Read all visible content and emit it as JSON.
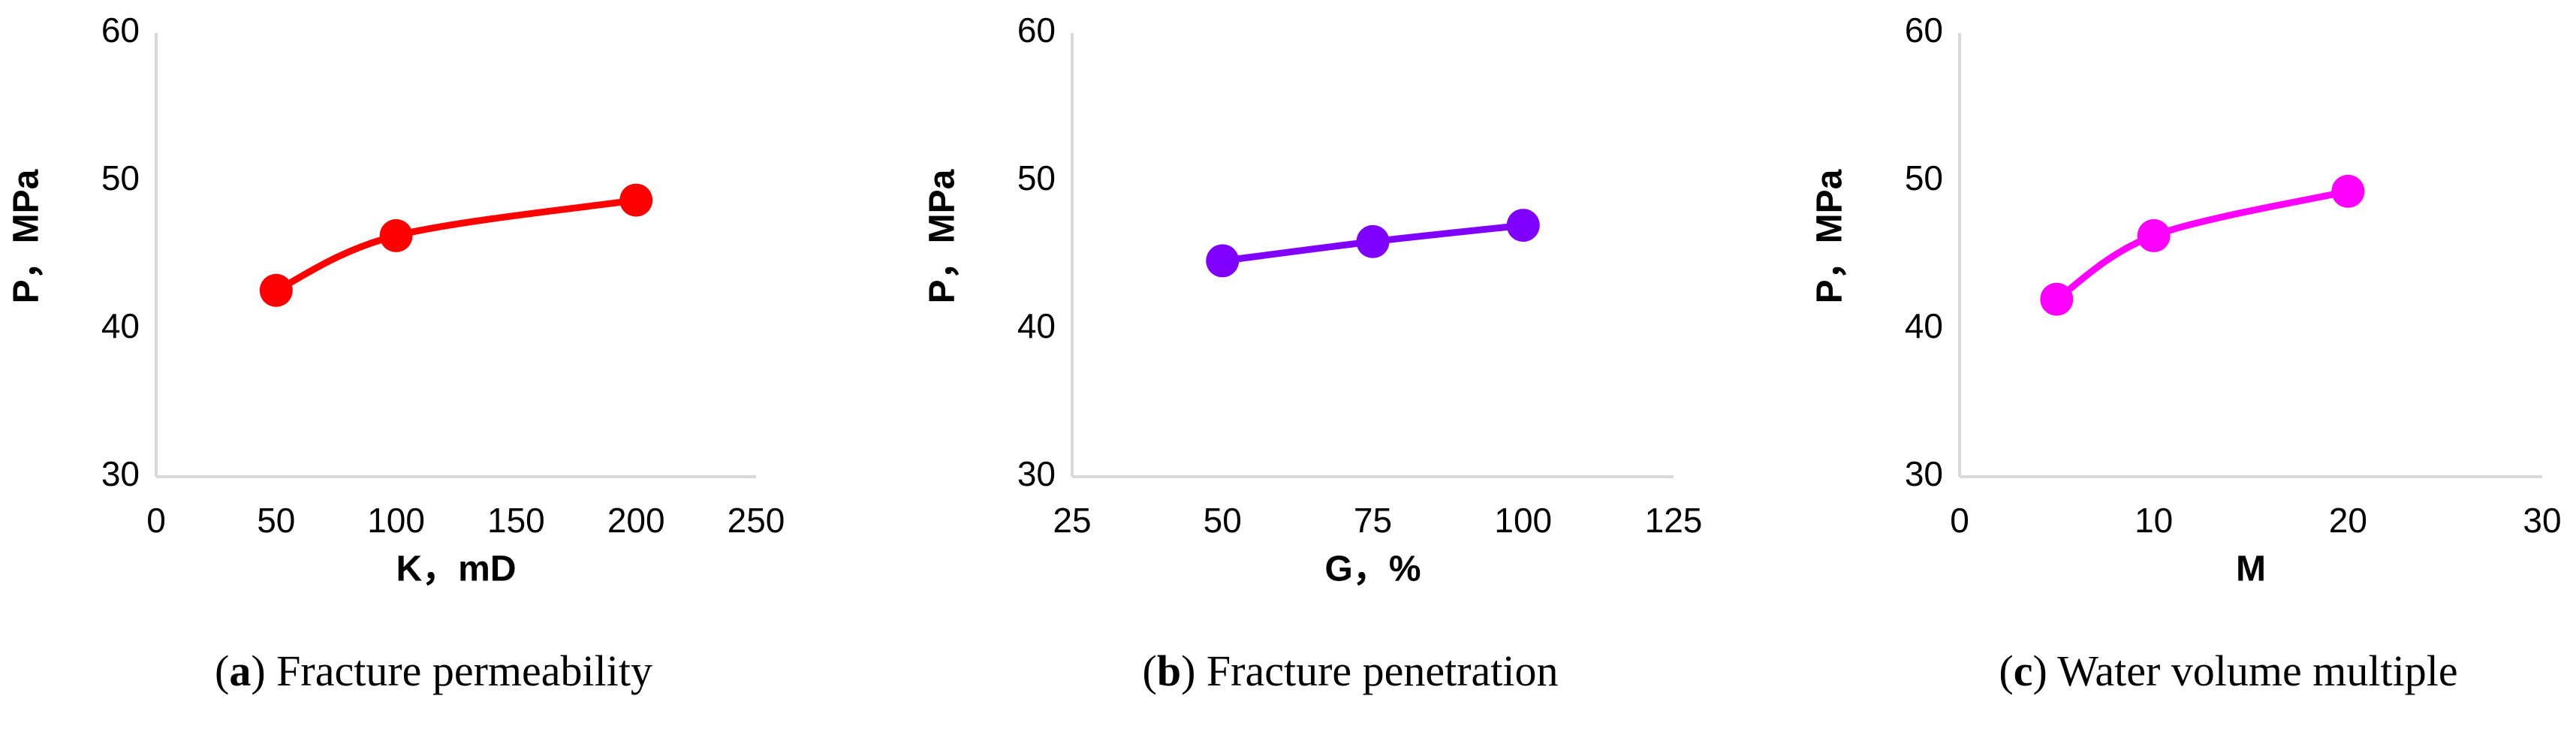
{
  "chart_data": [
    {
      "type": "line",
      "x": [
        50,
        100,
        200
      ],
      "values": [
        42.6,
        46.3,
        48.7
      ],
      "color": "#ff0000",
      "xlim": [
        0,
        250
      ],
      "xticks": [
        0,
        50,
        100,
        150,
        200,
        250
      ],
      "ylim": [
        30,
        60
      ],
      "yticks": [
        30,
        40,
        50,
        60
      ],
      "xlabel": "K，mD",
      "ylabel": "P，MPa",
      "grid": false,
      "caption": {
        "open": "(",
        "letter": "a",
        "rest": ") Fracture permeability"
      }
    },
    {
      "type": "line",
      "x": [
        50,
        75,
        100
      ],
      "values": [
        44.6,
        45.9,
        47.0
      ],
      "color": "#7f00ff",
      "xlim": [
        25,
        125
      ],
      "xticks": [
        25,
        50,
        75,
        100,
        125
      ],
      "ylim": [
        30,
        60
      ],
      "yticks": [
        30,
        40,
        50,
        60
      ],
      "xlabel": "G，%",
      "ylabel": "P，MPa",
      "grid": false,
      "caption": {
        "open": "(",
        "letter": "b",
        "rest": ") Fracture penetration"
      }
    },
    {
      "type": "line",
      "x": [
        5,
        10,
        20
      ],
      "values": [
        42.0,
        46.3,
        49.3
      ],
      "color": "#ff00ff",
      "xlim": [
        0,
        30
      ],
      "xticks": [
        0,
        10,
        20,
        30
      ],
      "ylim": [
        30,
        60
      ],
      "yticks": [
        30,
        40,
        50,
        60
      ],
      "xlabel": "M",
      "ylabel": "P，MPa",
      "grid": false,
      "caption": {
        "open": "(",
        "letter": "c",
        "rest": ") Water volume multiple"
      }
    }
  ]
}
